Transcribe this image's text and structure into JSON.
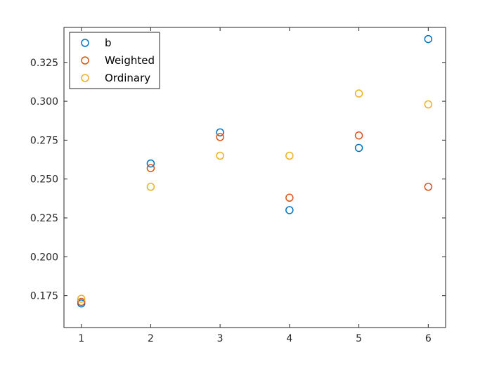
{
  "chart_data": {
    "type": "scatter",
    "title": "",
    "xlabel": "",
    "ylabel": "",
    "xlim": [
      0.75,
      6.25
    ],
    "ylim": [
      0.1545,
      0.3475
    ],
    "x": [
      1,
      2,
      3,
      4,
      5,
      6
    ],
    "xticks": [
      "1",
      "2",
      "3",
      "4",
      "5",
      "6"
    ],
    "yticks": [
      0.175,
      0.2,
      0.225,
      0.25,
      0.275,
      0.3,
      0.325
    ],
    "ytick_labels": [
      "0.175",
      "0.200",
      "0.225",
      "0.250",
      "0.275",
      "0.300",
      "0.325"
    ],
    "grid": false,
    "legend_position": "top-left",
    "series": [
      {
        "name": "b",
        "color": "#0072BD",
        "values": [
          0.17,
          0.26,
          0.28,
          0.23,
          0.27,
          0.34
        ]
      },
      {
        "name": "Weighted",
        "color": "#D95319",
        "values": [
          0.171,
          0.257,
          0.277,
          0.238,
          0.278,
          0.245
        ]
      },
      {
        "name": "Ordinary",
        "color": "#EDB120",
        "values": [
          0.173,
          0.245,
          0.265,
          0.265,
          0.305,
          0.298
        ]
      }
    ]
  }
}
